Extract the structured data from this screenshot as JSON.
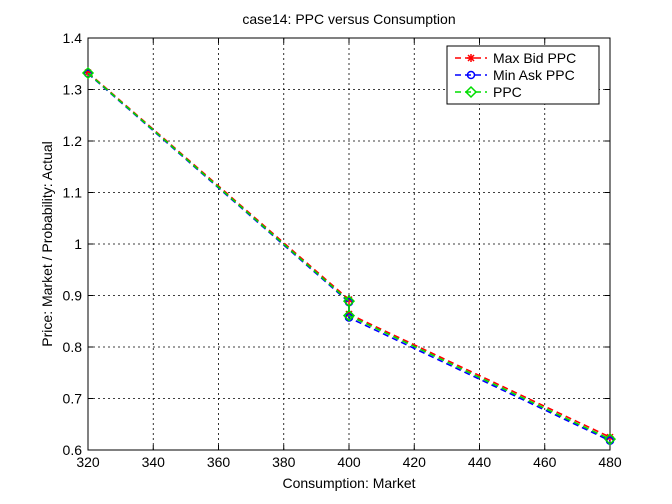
{
  "chart_data": {
    "type": "line",
    "title": "case14: PPC versus Consumption",
    "xlabel": "Consumption: Market",
    "ylabel": "Price: Market / Probability: Actual",
    "xlim": [
      320,
      480
    ],
    "ylim": [
      0.6,
      1.4
    ],
    "xticks": [
      320,
      340,
      360,
      380,
      400,
      420,
      440,
      460,
      480
    ],
    "yticks": [
      0.6,
      0.7,
      0.8,
      0.9,
      1,
      1.1,
      1.2,
      1.3,
      1.4
    ],
    "xtick_labels": [
      "320",
      "340",
      "360",
      "380",
      "400",
      "420",
      "440",
      "460",
      "480"
    ],
    "ytick_labels": [
      "0.6",
      "0.7",
      "0.8",
      "0.9",
      "1",
      "1.1",
      "1.2",
      "1.3",
      "1.4"
    ],
    "grid": true,
    "legend_position": "top-right",
    "series": [
      {
        "name": "Max Bid PPC",
        "color": "#ff0000",
        "marker": "star",
        "x": [
          320,
          400,
          400,
          480
        ],
        "y": [
          1.333,
          0.892,
          0.864,
          0.625
        ]
      },
      {
        "name": "Min Ask PPC",
        "color": "#0000ff",
        "marker": "circle",
        "x": [
          320,
          400,
          400,
          480
        ],
        "y": [
          1.331,
          0.887,
          0.857,
          0.618
        ]
      },
      {
        "name": "PPC",
        "color": "#00dd00",
        "marker": "diamond",
        "x": [
          320,
          400,
          400,
          480
        ],
        "y": [
          1.332,
          0.889,
          0.861,
          0.621
        ]
      }
    ]
  }
}
